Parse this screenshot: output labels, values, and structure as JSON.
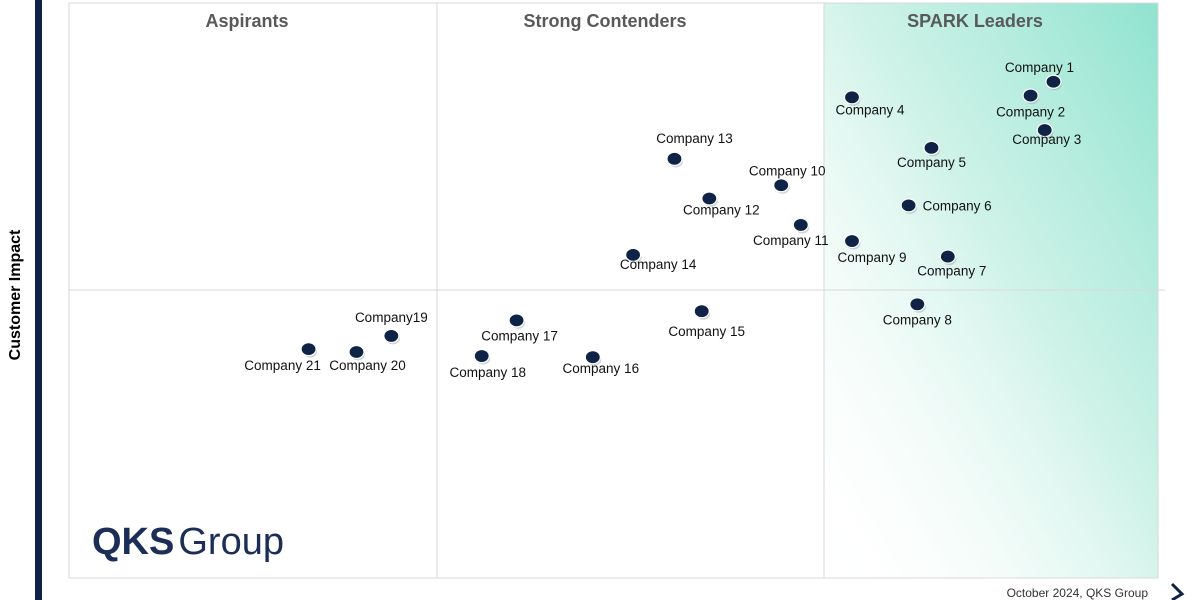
{
  "chart_data": {
    "type": "scatter",
    "title": "",
    "ylabel": "Customer Impact",
    "xlabel": "",
    "xlim": [
      0,
      100
    ],
    "ylim": [
      0,
      100
    ],
    "grid": false,
    "quadrants": [
      "Aspirants",
      "Strong Contenders",
      "SPARK Leaders"
    ],
    "points": [
      {
        "name": "Company 1",
        "x": 90.4,
        "y": 86.3
      },
      {
        "name": "Company 2",
        "x": 88.3,
        "y": 83.9
      },
      {
        "name": "Company 3",
        "x": 89.6,
        "y": 77.9
      },
      {
        "name": "Company 4",
        "x": 71.9,
        "y": 83.6
      },
      {
        "name": "Company 5",
        "x": 79.2,
        "y": 74.8
      },
      {
        "name": "Company 6",
        "x": 77.1,
        "y": 64.8
      },
      {
        "name": "Company 7",
        "x": 80.7,
        "y": 55.9
      },
      {
        "name": "Company 8",
        "x": 77.9,
        "y": 47.6
      },
      {
        "name": "Company 9",
        "x": 71.9,
        "y": 58.6
      },
      {
        "name": "Company 10",
        "x": 65.4,
        "y": 68.3
      },
      {
        "name": "Company 11",
        "x": 67.2,
        "y": 61.4
      },
      {
        "name": "Company 12",
        "x": 58.8,
        "y": 66.0
      },
      {
        "name": "Company 13",
        "x": 55.6,
        "y": 72.9
      },
      {
        "name": "Company 14",
        "x": 51.8,
        "y": 56.2
      },
      {
        "name": "Company 15",
        "x": 58.1,
        "y": 46.4
      },
      {
        "name": "Company 16",
        "x": 48.1,
        "y": 38.4
      },
      {
        "name": "Company 17",
        "x": 41.1,
        "y": 44.8
      },
      {
        "name": "Company 18",
        "x": 37.9,
        "y": 38.6
      },
      {
        "name": "Company 19",
        "x": 29.6,
        "y": 42.1
      },
      {
        "name": "Company 20",
        "x": 26.4,
        "y": 39.3
      },
      {
        "name": "Company 21",
        "x": 22.0,
        "y": 39.8
      }
    ],
    "point_labels": [
      "Company 1",
      "Company 2",
      "Company 3",
      "Company 4",
      "Company 5",
      "Company 6",
      "Company 7",
      "Company 8",
      "Company 9",
      "Company 10",
      "Company 11",
      "Company 12",
      "Company 13",
      "Company 14",
      "Company 15",
      "Company 16",
      "Company 17",
      "Company 18",
      "Company19",
      "Company 20",
      "Company 21"
    ],
    "colors": {
      "point": "#0f2346",
      "leader_gradient": "#8fe3cf",
      "axis": "#0f2346",
      "grid_line": "#d9d9d9",
      "quadrant_title": "#595959",
      "logo": "#1a2e57"
    }
  },
  "branding": {
    "logo_bold": "QKS",
    "logo_light": "Group",
    "footer": "October 2024, QKS Group"
  }
}
